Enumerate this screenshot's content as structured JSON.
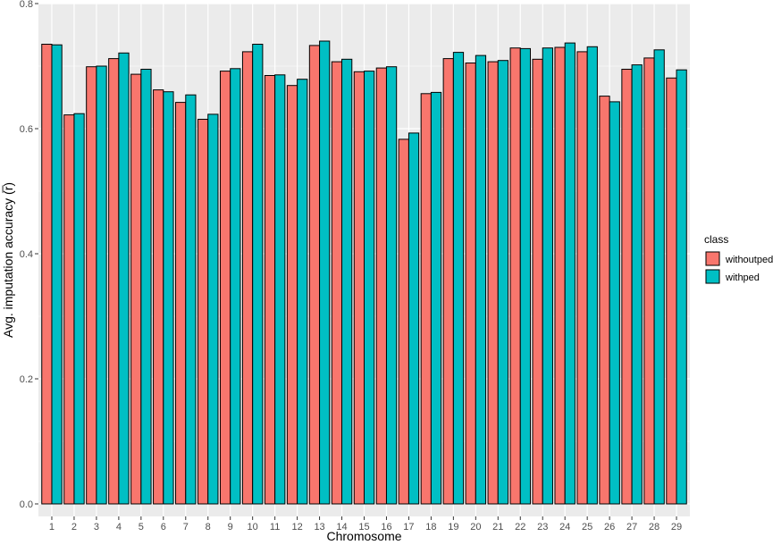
{
  "chart_data": {
    "type": "bar",
    "xlabel": "Chromosome",
    "ylabel": "Avg. imputation accuracy (r̅)",
    "ylim": [
      -0.02,
      0.8
    ],
    "yticks": [
      0.0,
      0.2,
      0.4,
      0.6,
      0.8
    ],
    "ytick_labels": [
      "0.0",
      "0.2",
      "0.4",
      "0.6",
      "0.8"
    ],
    "grid": true,
    "legend": {
      "title": "class",
      "position": "right"
    },
    "categories": [
      "1",
      "2",
      "3",
      "4",
      "5",
      "6",
      "7",
      "8",
      "9",
      "10",
      "11",
      "12",
      "13",
      "14",
      "15",
      "16",
      "17",
      "18",
      "19",
      "20",
      "21",
      "22",
      "23",
      "24",
      "25",
      "26",
      "27",
      "28",
      "29"
    ],
    "series": [
      {
        "name": "withoutped",
        "color": "#F8766D",
        "values": [
          0.735,
          0.622,
          0.699,
          0.712,
          0.687,
          0.662,
          0.642,
          0.615,
          0.692,
          0.723,
          0.685,
          0.669,
          0.733,
          0.707,
          0.691,
          0.697,
          0.583,
          0.656,
          0.712,
          0.705,
          0.707,
          0.729,
          0.711,
          0.73,
          0.723,
          0.652,
          0.695,
          0.713,
          0.681
        ]
      },
      {
        "name": "withped",
        "color": "#00BFC4",
        "values": [
          0.734,
          0.624,
          0.7,
          0.721,
          0.695,
          0.659,
          0.654,
          0.623,
          0.696,
          0.735,
          0.686,
          0.679,
          0.74,
          0.711,
          0.692,
          0.699,
          0.593,
          0.658,
          0.722,
          0.717,
          0.709,
          0.728,
          0.729,
          0.737,
          0.731,
          0.643,
          0.702,
          0.726,
          0.694
        ]
      }
    ]
  }
}
